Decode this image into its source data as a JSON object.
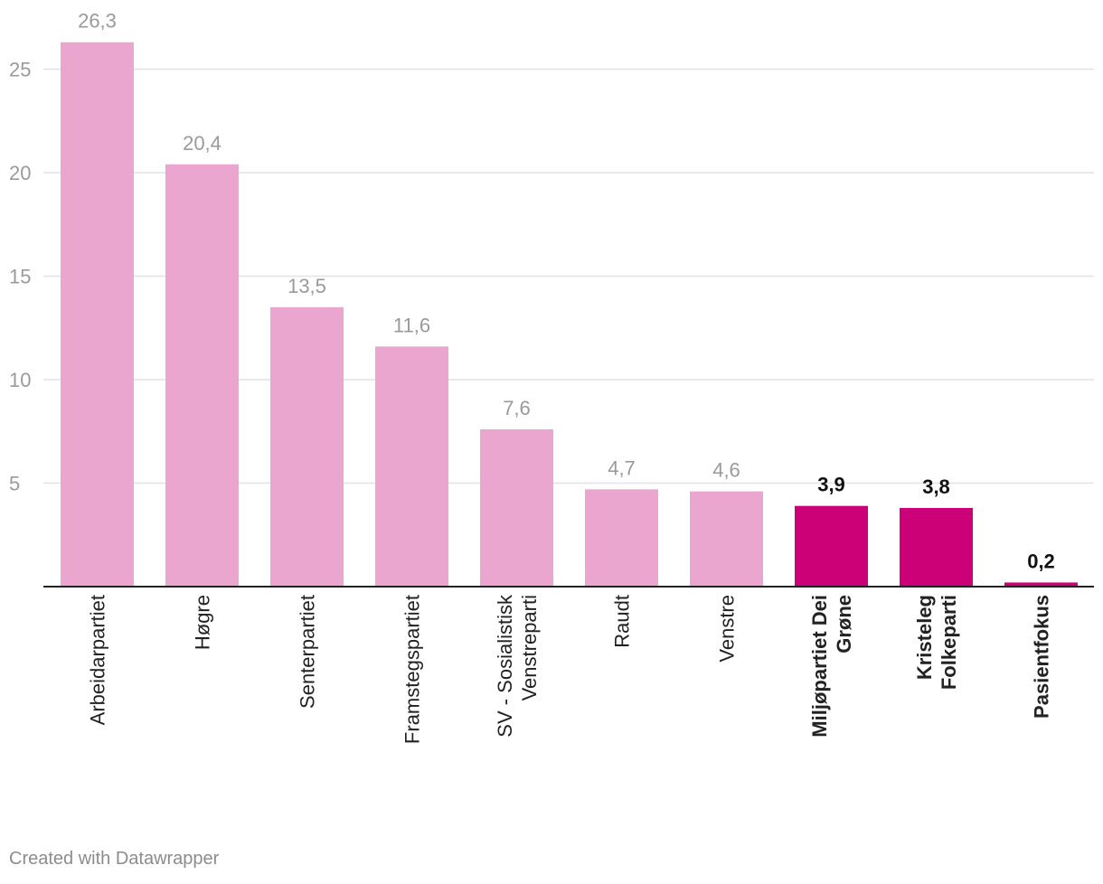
{
  "chart_data": {
    "type": "bar",
    "categories": [
      "Arbeidarpartiet",
      "Høgre",
      "Senterpartiet",
      "Framstegspartiet",
      "SV - Sosialistisk Venstreparti",
      "Raudt",
      "Venstre",
      "Miljøpartiet Dei Grøne",
      "Kristeleg Folkeparti",
      "Pasientfokus"
    ],
    "category_lines": [
      [
        "Arbeidarpartiet"
      ],
      [
        "Høgre"
      ],
      [
        "Senterpartiet"
      ],
      [
        "Framstegspartiet"
      ],
      [
        "SV - Sosialistisk",
        "Venstreparti"
      ],
      [
        "Raudt"
      ],
      [
        "Venstre"
      ],
      [
        "Miljøpartiet Dei",
        "Grøne"
      ],
      [
        "Kristeleg",
        "Folkeparti"
      ],
      [
        "Pasientfokus"
      ]
    ],
    "values": [
      26.3,
      20.4,
      13.5,
      11.6,
      7.6,
      4.7,
      4.6,
      3.9,
      3.8,
      0.2
    ],
    "value_labels": [
      "26,3",
      "20,4",
      "13,5",
      "11,6",
      "7,6",
      "4,7",
      "4,6",
      "3,9",
      "3,8",
      "0,2"
    ],
    "highlighted": [
      false,
      false,
      false,
      false,
      false,
      false,
      false,
      true,
      true,
      true
    ],
    "yticks": [
      5,
      10,
      15,
      20,
      25
    ],
    "ylim": [
      0,
      27.5
    ],
    "grid": true,
    "colors": {
      "normal": "#eba6d0",
      "highlight": "#cc0077",
      "grid": "#e2e2e2",
      "axis": "#222222",
      "label_muted": "#9a9a9a",
      "label_strong": "#111111"
    }
  },
  "footer": "Created with Datawrapper"
}
